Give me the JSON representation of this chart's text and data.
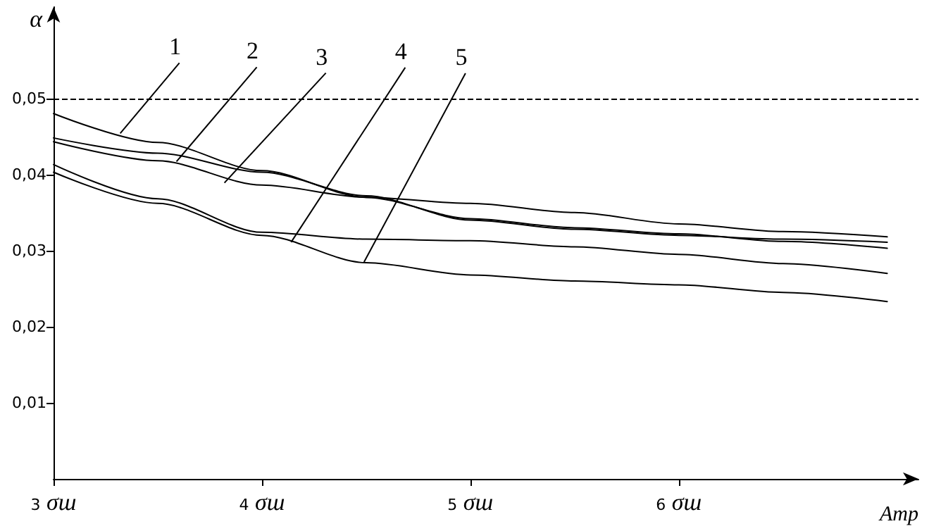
{
  "chart_data": {
    "type": "line",
    "xlabel": "Amp",
    "ylabel": "α",
    "x": [
      3,
      3.5,
      4,
      4.5,
      5,
      5.5,
      6,
      6.5,
      7
    ],
    "series": [
      {
        "color": "#000000",
        "values": [
          0.048,
          0.0442,
          0.0405,
          0.037,
          0.0342,
          0.033,
          0.0322,
          0.0312,
          0.0303
        ]
      },
      {
        "color": "#000000",
        "values": [
          0.0448,
          0.0428,
          0.0403,
          0.0372,
          0.034,
          0.0328,
          0.032,
          0.0315,
          0.0311
        ]
      },
      {
        "color": "#000000",
        "values": [
          0.0443,
          0.0418,
          0.0386,
          0.037,
          0.0362,
          0.035,
          0.0335,
          0.0325,
          0.0318
        ]
      },
      {
        "color": "#000000",
        "values": [
          0.0413,
          0.0368,
          0.0324,
          0.0315,
          0.0313,
          0.0305,
          0.0295,
          0.0283,
          0.027
        ]
      },
      {
        "color": "#000000",
        "values": [
          0.0403,
          0.0362,
          0.032,
          0.0284,
          0.0268,
          0.026,
          0.0255,
          0.0245,
          0.0233
        ]
      }
    ],
    "xlim": [
      3,
      7.15
    ],
    "ylim": [
      0,
      0.062
    ],
    "xticks": [
      {
        "value": 3,
        "label": "3 σш"
      },
      {
        "value": 4,
        "label": "4 σш"
      },
      {
        "value": 5,
        "label": "5 σш"
      },
      {
        "value": 6,
        "label": "6 σш"
      }
    ],
    "yticks": [
      {
        "value": 0.01,
        "label": "0,01"
      },
      {
        "value": 0.02,
        "label": "0,02"
      },
      {
        "value": 0.03,
        "label": "0,03"
      },
      {
        "value": 0.04,
        "label": "0,04"
      },
      {
        "value": 0.05,
        "label": "0,05"
      }
    ],
    "ref_lines": [
      {
        "axis": "y",
        "value": 0.05,
        "color": "#000000",
        "line_style": "dashed"
      }
    ],
    "annotations": [
      {
        "text": "1",
        "x": 3.32,
        "y": 0.0454
      },
      {
        "text": "2",
        "x": 3.59,
        "y": 0.0417
      },
      {
        "text": "3",
        "x": 3.82,
        "y": 0.0389
      },
      {
        "text": "4",
        "x": 4.14,
        "y": 0.0311
      },
      {
        "text": "5",
        "x": 4.49,
        "y": 0.0285
      }
    ],
    "grid": false,
    "marker": "none",
    "line_style": "solid"
  }
}
